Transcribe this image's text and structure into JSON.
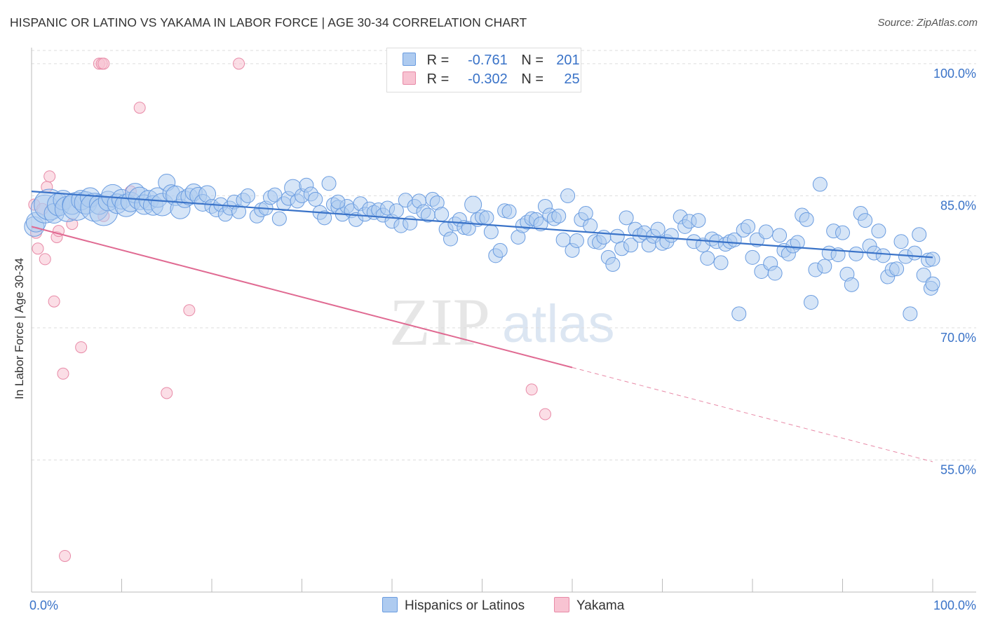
{
  "title": "HISPANIC OR LATINO VS YAKAMA IN LABOR FORCE | AGE 30-34 CORRELATION CHART",
  "source": "Source: ZipAtlas.com",
  "watermark": {
    "zip": "ZIP",
    "atlas": "atlas"
  },
  "legend": {
    "r_label": "R =",
    "n_label": "N =",
    "rows": [
      {
        "r": "-0.761",
        "n": "201",
        "fill": "#aecbf0",
        "stroke": "#6a9ce0"
      },
      {
        "r": "-0.302",
        "n": "25",
        "fill": "#f8c3d2",
        "stroke": "#e88aa7"
      }
    ]
  },
  "bottom_legend": [
    "Hispanics or Latinos",
    "Yakama"
  ],
  "chart_data": {
    "type": "scatter",
    "title": "HISPANIC OR LATINO VS YAKAMA IN LABOR FORCE | AGE 30-34 CORRELATION CHART",
    "xlabel": "",
    "ylabel": "In Labor Force | Age 30-34",
    "xlim": [
      0,
      100
    ],
    "ylim": [
      40,
      101.5
    ],
    "x_tick_labels": [
      "0.0%",
      "100.0%"
    ],
    "y_ticks": [
      55,
      70,
      85,
      100
    ],
    "y_tick_labels": [
      "55.0%",
      "70.0%",
      "85.0%",
      "100.0%"
    ],
    "grid": "horizontal-dashed",
    "legend_position": "top-center",
    "colors": {
      "hispanic": "#3a73c8",
      "yakama": "#e06a92",
      "tick_label": "#3a73c8"
    },
    "series": [
      {
        "name": "Hispanics or Latinos",
        "color": "#3a73c8",
        "trend": {
          "x": [
            0,
            100
          ],
          "y": [
            85.5,
            78.0
          ]
        },
        "points": [
          [
            0.3,
            81.5,
            14
          ],
          [
            0.5,
            82.0,
            14
          ],
          [
            1.5,
            83.5,
            20
          ],
          [
            2.0,
            84.0,
            22
          ],
          [
            2.5,
            83.0,
            14
          ],
          [
            3.0,
            84.0,
            16
          ],
          [
            3.5,
            84.5,
            14
          ],
          [
            4.0,
            83.5,
            18
          ],
          [
            4.5,
            84.0,
            14
          ],
          [
            5.0,
            83.8,
            20
          ],
          [
            5.5,
            84.5,
            14
          ],
          [
            6.0,
            84.2,
            16
          ],
          [
            6.5,
            84.8,
            14
          ],
          [
            7.0,
            83.7,
            20
          ],
          [
            7.5,
            84.0,
            14
          ],
          [
            8.0,
            83.2,
            20
          ],
          [
            8.5,
            84.4,
            14
          ],
          [
            9.0,
            85.0,
            16
          ],
          [
            9.5,
            84.1,
            14
          ],
          [
            10.0,
            84.6,
            14
          ],
          [
            10.5,
            83.9,
            16
          ],
          [
            11.0,
            84.3,
            14
          ],
          [
            11.5,
            85.3,
            14
          ],
          [
            12.0,
            84.7,
            16
          ],
          [
            12.5,
            84.0,
            14
          ],
          [
            13.0,
            84.5,
            14
          ],
          [
            13.5,
            83.9,
            14
          ],
          [
            14.0,
            84.8,
            14
          ],
          [
            14.5,
            84.0,
            16
          ],
          [
            15.0,
            86.5,
            12
          ],
          [
            15.5,
            85.3,
            12
          ],
          [
            16.0,
            85.0,
            14
          ],
          [
            16.5,
            83.5,
            14
          ],
          [
            17.0,
            84.6,
            12
          ],
          [
            17.5,
            84.9,
            12
          ],
          [
            18.0,
            85.4,
            12
          ],
          [
            18.5,
            85.0,
            12
          ],
          [
            19.0,
            84.2,
            12
          ],
          [
            19.5,
            85.2,
            12
          ],
          [
            20.0,
            83.8,
            10
          ],
          [
            20.5,
            83.4,
            10
          ],
          [
            21.0,
            84.0,
            10
          ],
          [
            21.5,
            82.9,
            10
          ],
          [
            22.0,
            83.6,
            10
          ],
          [
            22.5,
            84.3,
            10
          ],
          [
            23.0,
            83.2,
            10
          ],
          [
            23.5,
            84.5,
            10
          ],
          [
            24.0,
            85.0,
            10
          ],
          [
            25.0,
            82.7,
            10
          ],
          [
            25.5,
            83.4,
            10
          ],
          [
            26.0,
            83.6,
            10
          ],
          [
            26.5,
            84.8,
            10
          ],
          [
            27.0,
            85.1,
            10
          ],
          [
            27.5,
            82.4,
            10
          ],
          [
            28.0,
            84.1,
            10
          ],
          [
            28.5,
            84.7,
            10
          ],
          [
            29.0,
            85.9,
            12
          ],
          [
            29.5,
            84.4,
            10
          ],
          [
            30.0,
            85.0,
            10
          ],
          [
            30.5,
            86.2,
            10
          ],
          [
            31.0,
            85.2,
            10
          ],
          [
            31.5,
            84.6,
            10
          ],
          [
            32.0,
            83.1,
            10
          ],
          [
            32.5,
            82.5,
            10
          ],
          [
            33.0,
            86.4,
            10
          ],
          [
            33.5,
            84.0,
            10
          ],
          [
            34.0,
            83.7,
            10
          ],
          [
            34.5,
            82.9,
            10
          ],
          [
            35.0,
            83.8,
            10
          ],
          [
            35.5,
            83.3,
            10
          ],
          [
            36.0,
            82.3,
            10
          ],
          [
            36.5,
            84.1,
            10
          ],
          [
            37.0,
            82.9,
            10
          ],
          [
            37.5,
            83.5,
            10
          ],
          [
            38.0,
            83.1,
            10
          ],
          [
            38.5,
            83.4,
            10
          ],
          [
            39.0,
            82.8,
            10
          ],
          [
            39.5,
            83.6,
            10
          ],
          [
            40.0,
            82.1,
            10
          ],
          [
            40.5,
            83.3,
            10
          ],
          [
            41.0,
            81.6,
            10
          ],
          [
            41.5,
            84.5,
            10
          ],
          [
            42.0,
            81.9,
            10
          ],
          [
            42.5,
            83.8,
            10
          ],
          [
            43.0,
            84.4,
            10
          ],
          [
            43.5,
            83.2,
            10
          ],
          [
            44.0,
            82.8,
            10
          ],
          [
            44.5,
            84.6,
            10
          ],
          [
            45.0,
            84.2,
            10
          ],
          [
            45.5,
            82.9,
            10
          ],
          [
            46.0,
            81.2,
            10
          ],
          [
            46.5,
            80.1,
            10
          ],
          [
            47.0,
            81.8,
            10
          ],
          [
            47.5,
            82.3,
            10
          ],
          [
            48.0,
            81.4,
            10
          ],
          [
            48.5,
            81.3,
            10
          ],
          [
            49.0,
            84.0,
            12
          ],
          [
            49.5,
            82.3,
            10
          ],
          [
            50.0,
            82.6,
            10
          ],
          [
            50.5,
            82.5,
            10
          ],
          [
            51.0,
            80.9,
            10
          ],
          [
            51.5,
            78.2,
            10
          ],
          [
            52.0,
            78.8,
            10
          ],
          [
            52.5,
            83.3,
            10
          ],
          [
            53.0,
            83.2,
            10
          ],
          [
            54.0,
            80.3,
            10
          ],
          [
            54.5,
            81.6,
            10
          ],
          [
            55.0,
            82.0,
            10
          ],
          [
            55.5,
            82.4,
            10
          ],
          [
            56.0,
            82.3,
            10
          ],
          [
            56.5,
            81.8,
            10
          ],
          [
            57.0,
            83.8,
            10
          ],
          [
            57.5,
            82.8,
            10
          ],
          [
            58.0,
            82.4,
            10
          ],
          [
            58.5,
            82.7,
            10
          ],
          [
            59.0,
            80.0,
            10
          ],
          [
            59.5,
            85.0,
            10
          ],
          [
            60.0,
            78.8,
            10
          ],
          [
            60.5,
            79.9,
            10
          ],
          [
            61.0,
            82.3,
            10
          ],
          [
            61.5,
            83.0,
            10
          ],
          [
            62.0,
            81.6,
            10
          ],
          [
            62.5,
            79.8,
            10
          ],
          [
            63.0,
            79.7,
            10
          ],
          [
            63.5,
            80.3,
            10
          ],
          [
            64.0,
            78.0,
            10
          ],
          [
            64.5,
            77.2,
            10
          ],
          [
            65.0,
            80.4,
            10
          ],
          [
            65.5,
            79.0,
            10
          ],
          [
            66.0,
            82.5,
            10
          ],
          [
            66.5,
            79.4,
            10
          ],
          [
            67.0,
            81.2,
            10
          ],
          [
            67.5,
            80.5,
            10
          ],
          [
            68.0,
            80.8,
            10
          ],
          [
            68.5,
            79.4,
            10
          ],
          [
            69.0,
            80.4,
            10
          ],
          [
            69.5,
            81.2,
            10
          ],
          [
            70.0,
            79.6,
            10
          ],
          [
            70.5,
            79.8,
            10
          ],
          [
            71.0,
            80.5,
            10
          ],
          [
            72.0,
            82.6,
            10
          ],
          [
            72.5,
            81.5,
            10
          ],
          [
            73.0,
            82.1,
            10
          ],
          [
            73.5,
            79.8,
            10
          ],
          [
            74.0,
            82.2,
            10
          ],
          [
            74.5,
            79.4,
            10
          ],
          [
            75.0,
            77.9,
            10
          ],
          [
            75.5,
            80.1,
            10
          ],
          [
            76.0,
            79.8,
            10
          ],
          [
            76.5,
            77.4,
            10
          ],
          [
            77.0,
            79.5,
            10
          ],
          [
            77.5,
            79.8,
            10
          ],
          [
            78.0,
            80.0,
            10
          ],
          [
            78.5,
            71.6,
            10
          ],
          [
            79.0,
            81.1,
            10
          ],
          [
            79.5,
            81.5,
            10
          ],
          [
            80.0,
            78.0,
            10
          ],
          [
            80.5,
            80.0,
            10
          ],
          [
            81.0,
            76.4,
            10
          ],
          [
            81.5,
            80.9,
            10
          ],
          [
            82.0,
            77.3,
            10
          ],
          [
            82.5,
            76.2,
            10
          ],
          [
            83.0,
            80.5,
            10
          ],
          [
            83.5,
            78.8,
            10
          ],
          [
            84.0,
            78.4,
            10
          ],
          [
            84.5,
            79.3,
            10
          ],
          [
            85.0,
            79.7,
            10
          ],
          [
            85.5,
            82.8,
            10
          ],
          [
            86.0,
            82.3,
            10
          ],
          [
            86.5,
            72.9,
            10
          ],
          [
            87.0,
            76.6,
            10
          ],
          [
            87.5,
            86.3,
            10
          ],
          [
            88.0,
            77.0,
            10
          ],
          [
            88.5,
            78.5,
            10
          ],
          [
            89.0,
            81.0,
            10
          ],
          [
            89.5,
            78.3,
            10
          ],
          [
            90.0,
            80.8,
            10
          ],
          [
            90.5,
            76.1,
            10
          ],
          [
            91.0,
            74.9,
            10
          ],
          [
            91.5,
            78.4,
            10
          ],
          [
            92.0,
            83.0,
            10
          ],
          [
            92.5,
            82.2,
            10
          ],
          [
            93.0,
            79.3,
            10
          ],
          [
            93.5,
            78.5,
            10
          ],
          [
            94.0,
            81.0,
            10
          ],
          [
            94.5,
            78.2,
            10
          ],
          [
            95.0,
            75.8,
            10
          ],
          [
            95.5,
            76.6,
            10
          ],
          [
            96.0,
            76.7,
            10
          ],
          [
            96.5,
            79.8,
            10
          ],
          [
            97.0,
            78.1,
            10
          ],
          [
            97.5,
            71.6,
            10
          ],
          [
            98.0,
            78.5,
            10
          ],
          [
            98.5,
            80.6,
            10
          ],
          [
            99.0,
            76.0,
            10
          ],
          [
            99.5,
            77.7,
            10
          ],
          [
            99.8,
            74.5,
            10
          ],
          [
            100.0,
            75.0,
            10
          ],
          [
            100.0,
            77.8,
            10
          ],
          [
            34.0,
            84.3,
            10
          ]
        ]
      },
      {
        "name": "Yakama",
        "color": "#e06a92",
        "trend": {
          "x": [
            0,
            60
          ],
          "y": [
            81.5,
            65.5
          ]
        },
        "trend_dashed": {
          "x": [
            60,
            100
          ],
          "y": [
            65.5,
            54.8
          ]
        },
        "points": [
          [
            0.3,
            84.0,
            8
          ],
          [
            0.5,
            80.8,
            8
          ],
          [
            0.7,
            79.0,
            8
          ],
          [
            1.2,
            83.5,
            8
          ],
          [
            1.5,
            77.8,
            8
          ],
          [
            1.7,
            86.0,
            8
          ],
          [
            2.0,
            87.2,
            8
          ],
          [
            2.5,
            73.0,
            8
          ],
          [
            2.8,
            80.3,
            8
          ],
          [
            3.0,
            81.0,
            8
          ],
          [
            3.5,
            64.8,
            8
          ],
          [
            4.5,
            81.8,
            8
          ],
          [
            5.5,
            67.8,
            8
          ],
          [
            7.5,
            100.0,
            8
          ],
          [
            7.8,
            100.0,
            8
          ],
          [
            8.0,
            100.0,
            8
          ],
          [
            8.0,
            82.7,
            8
          ],
          [
            11.0,
            85.5,
            8
          ],
          [
            12.0,
            95.0,
            8
          ],
          [
            15.0,
            62.6,
            8
          ],
          [
            17.5,
            72.0,
            8
          ],
          [
            23.0,
            100.0,
            8
          ],
          [
            55.5,
            63.0,
            8
          ],
          [
            57.0,
            60.2,
            8
          ],
          [
            3.7,
            44.1,
            8
          ]
        ]
      }
    ]
  }
}
